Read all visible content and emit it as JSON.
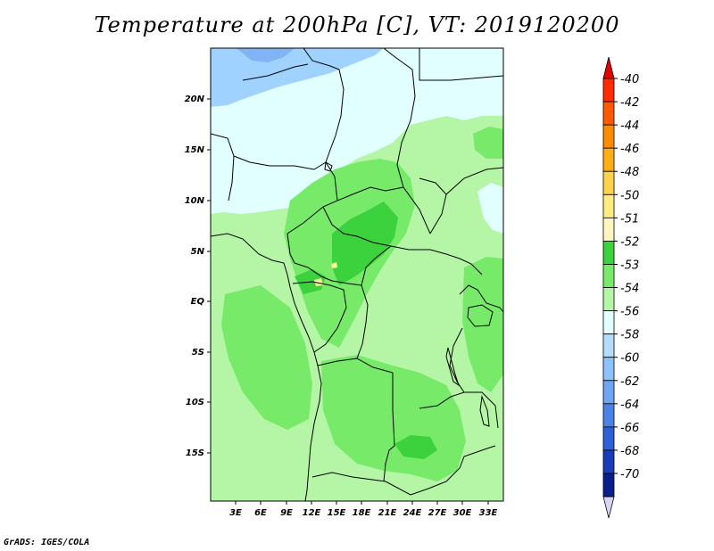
{
  "title": "Temperature at 200hPa [C], VT: 2019120200",
  "credit": "GrADS: IGES/COLA",
  "map": {
    "lat_labels": [
      "20N",
      "15N",
      "10N",
      "5N",
      "EQ",
      "5S",
      "10S",
      "15S"
    ],
    "lon_labels": [
      "3E",
      "6E",
      "9E",
      "12E",
      "15E",
      "18E",
      "21E",
      "24E",
      "27E",
      "30E",
      "33E"
    ],
    "fill_colors": {
      "c_54": "#e0fffe",
      "c_53": "#b4f5a6",
      "c_52": "#78ea6a",
      "c_51": "#3cd23e",
      "c_50": "#fff5a0",
      "c_56": "#a0d2ff",
      "c_58": "#82b4f5"
    }
  },
  "colorbar": {
    "levels": [
      "-40",
      "-42",
      "-44",
      "-46",
      "-48",
      "-50",
      "-51",
      "-52",
      "-53",
      "-54",
      "-56",
      "-58",
      "-60",
      "-62",
      "-64",
      "-66",
      "-68",
      "-70"
    ],
    "colors": [
      "#ff2a00",
      "#ff5a00",
      "#ff8c00",
      "#ffae14",
      "#ffd24b",
      "#ffeb82",
      "#fff5c0",
      "#3cd23e",
      "#78ea6a",
      "#b4f5a6",
      "#e0fffe",
      "#b4dcff",
      "#8cc3ff",
      "#6ea5f5",
      "#4b82e6",
      "#2d5fd7",
      "#193cb9",
      "#0a1e8c"
    ],
    "top_arrow_color": "#e60000",
    "bottom_arrow_color": "#d7d7f5"
  }
}
